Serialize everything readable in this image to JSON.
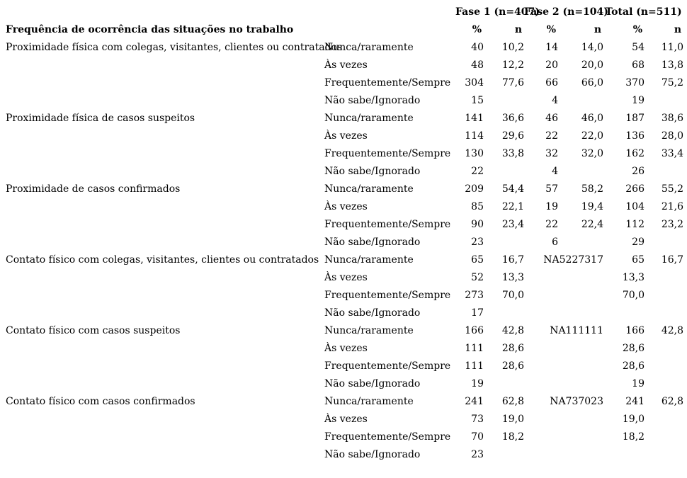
{
  "page": {
    "background": "#ffffff",
    "text_color": "#000000"
  },
  "table": {
    "phase_headers": [
      "Fase 1 (n=407)",
      "Fase 2 (n=104)",
      "Total (n=511)"
    ],
    "title": "Frequência de ocorrência das situações no trabalho",
    "col_headers": [
      "%",
      "n",
      "%",
      "n",
      "%",
      "n"
    ],
    "groups": [
      {
        "label": "Proximidade física com colegas, visitantes, clientes ou contratados",
        "rows": [
          {
            "stub": "Nunca/raramente",
            "cells": [
              "40",
              "10,2",
              "14",
              "14,0",
              "54",
              "11,0"
            ]
          },
          {
            "stub": "Às vezes",
            "cells": [
              "48",
              "12,2",
              "20",
              "20,0",
              "68",
              "13,8"
            ]
          },
          {
            "stub": "Frequentemente/Sempre",
            "cells": [
              "304",
              "77,6",
              "66",
              "66,0",
              "370",
              "75,2"
            ]
          },
          {
            "stub": "Não sabe/Ignorado",
            "cells": [
              "15",
              "",
              "4",
              "",
              "19",
              ""
            ]
          }
        ]
      },
      {
        "label": "Proximidade física de casos suspeitos",
        "rows": [
          {
            "stub": "Nunca/raramente",
            "cells": [
              "141",
              "36,6",
              "46",
              "46,0",
              "187",
              "38,6"
            ]
          },
          {
            "stub": "Às vezes",
            "cells": [
              "114",
              "29,6",
              "22",
              "22,0",
              "136",
              "28,0"
            ]
          },
          {
            "stub": "Frequentemente/Sempre",
            "cells": [
              "130",
              "33,8",
              "32",
              "32,0",
              "162",
              "33,4"
            ]
          },
          {
            "stub": "Não sabe/Ignorado",
            "cells": [
              "22",
              "",
              "4",
              "",
              "26",
              ""
            ]
          }
        ]
      },
      {
        "label": "Proximidade de casos confirmados",
        "rows": [
          {
            "stub": "Nunca/raramente",
            "cells": [
              "209",
              "54,4",
              "57",
              "58,2",
              "266",
              "55,2"
            ]
          },
          {
            "stub": "Às vezes",
            "cells": [
              "85",
              "22,1",
              "19",
              "19,4",
              "104",
              "21,6"
            ]
          },
          {
            "stub": "Frequentemente/Sempre",
            "cells": [
              "90",
              "23,4",
              "22",
              "22,4",
              "112",
              "23,2"
            ]
          },
          {
            "stub": "Não sabe/Ignorado",
            "cells": [
              "23",
              "",
              "6",
              "",
              "29",
              ""
            ]
          }
        ]
      },
      {
        "label": "Contato físico com colegas, visitantes, clientes ou contratados",
        "rows": [
          {
            "stub": "Nunca/raramente",
            "cells": [
              "65",
              "16,7",
              {
                "t": "NA5227317",
                "span": 2
              },
              "65",
              "16,7"
            ]
          },
          {
            "stub": "Às vezes",
            "cells": [
              "52",
              "13,3",
              "",
              "",
              "13,3",
              ""
            ]
          },
          {
            "stub": "Frequentemente/Sempre",
            "cells": [
              "273",
              "70,0",
              "",
              "",
              "70,0",
              ""
            ]
          },
          {
            "stub": "Não sabe/Ignorado",
            "cells": [
              "17",
              "",
              "",
              "",
              "",
              ""
            ]
          }
        ]
      },
      {
        "label": "Contato físico com casos suspeitos",
        "rows": [
          {
            "stub": "Nunca/raramente",
            "cells": [
              "166",
              "42,8",
              {
                "t": "NA111111",
                "span": 2
              },
              "166",
              "42,8"
            ]
          },
          {
            "stub": "Às vezes",
            "cells": [
              "111",
              "28,6",
              "",
              "",
              "28,6",
              ""
            ]
          },
          {
            "stub": "Frequentemente/Sempre",
            "cells": [
              "111",
              "28,6",
              "",
              "",
              "28,6",
              ""
            ]
          },
          {
            "stub": "Não sabe/Ignorado",
            "cells": [
              "19",
              "",
              "",
              "",
              "19",
              ""
            ]
          }
        ]
      },
      {
        "label": "Contato físico com casos confirmados",
        "rows": [
          {
            "stub": "Nunca/raramente",
            "cells": [
              "241",
              "62,8",
              {
                "t": "NA737023",
                "span": 2
              },
              "241",
              "62,8"
            ]
          },
          {
            "stub": "Às vezes",
            "cells": [
              "73",
              "19,0",
              "",
              "",
              "19,0",
              ""
            ]
          },
          {
            "stub": "Frequentemente/Sempre",
            "cells": [
              "70",
              "18,2",
              "",
              "",
              "18,2",
              ""
            ]
          },
          {
            "stub": "Não sabe/Ignorado",
            "cells": [
              "23",
              "",
              "",
              "",
              "",
              ""
            ]
          }
        ]
      }
    ]
  }
}
